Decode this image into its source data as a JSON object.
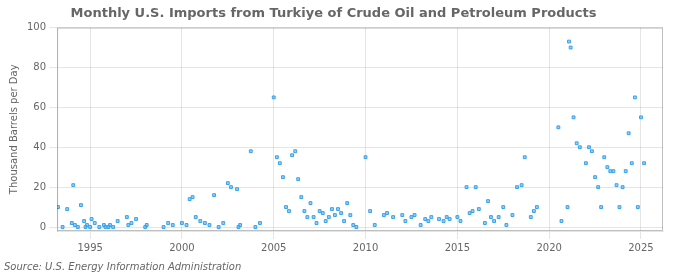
{
  "chart_data": {
    "type": "scatter",
    "title": "Monthly U.S. Imports from Turkiye of Crude Oil and Petroleum Products",
    "ylabel": "Thousand Barrels per Day",
    "annotations": [
      "Source: U.S. Energy Information Administration"
    ],
    "marker": "square",
    "grid": true,
    "xlim": [
      1993.2,
      2026.2
    ],
    "ylim": [
      -2,
      100
    ],
    "xticks": [
      1995,
      2000,
      2005,
      2010,
      2015,
      2020,
      2025
    ],
    "yticks": [
      0,
      20,
      40,
      60,
      80,
      100
    ],
    "x": [
      1993.25,
      1993.5,
      1993.75,
      1994.0,
      1994.08,
      1994.17,
      1994.33,
      1994.5,
      1994.67,
      1994.75,
      1994.83,
      1995.0,
      1995.08,
      1995.25,
      1995.5,
      1995.75,
      1995.83,
      1996.0,
      1996.08,
      1996.25,
      1996.5,
      1997.0,
      1997.08,
      1997.25,
      1997.5,
      1998.0,
      1998.08,
      1999.0,
      1999.25,
      1999.5,
      2000.0,
      2000.25,
      2000.42,
      2000.58,
      2000.75,
      2001.0,
      2001.25,
      2001.5,
      2001.75,
      2002.0,
      2002.25,
      2002.5,
      2002.67,
      2003.0,
      2003.08,
      2003.17,
      2003.75,
      2004.0,
      2004.25,
      2005.0,
      2005.17,
      2005.33,
      2005.5,
      2005.67,
      2005.83,
      2006.0,
      2006.17,
      2006.33,
      2006.5,
      2006.67,
      2006.83,
      2007.0,
      2007.17,
      2007.33,
      2007.5,
      2007.67,
      2007.83,
      2008.0,
      2008.17,
      2008.33,
      2008.5,
      2008.67,
      2008.83,
      2009.0,
      2009.17,
      2009.33,
      2009.5,
      2010.0,
      2010.25,
      2010.5,
      2011.0,
      2011.17,
      2011.5,
      2012.0,
      2012.17,
      2012.5,
      2012.67,
      2013.0,
      2013.25,
      2013.42,
      2013.58,
      2014.0,
      2014.25,
      2014.42,
      2014.58,
      2015.0,
      2015.17,
      2015.5,
      2015.67,
      2015.83,
      2016.0,
      2016.17,
      2016.5,
      2016.67,
      2016.83,
      2017.0,
      2017.25,
      2017.5,
      2017.67,
      2018.0,
      2018.25,
      2018.5,
      2018.67,
      2019.0,
      2019.17,
      2019.33,
      2020.5,
      2020.67,
      2021.0,
      2021.08,
      2021.17,
      2021.33,
      2021.5,
      2021.67,
      2022.0,
      2022.17,
      2022.33,
      2022.5,
      2022.67,
      2022.83,
      2023.0,
      2023.17,
      2023.33,
      2023.5,
      2023.67,
      2023.83,
      2024.0,
      2024.17,
      2024.33,
      2024.5,
      2024.67,
      2024.83,
      2025.0,
      2025.17
    ],
    "values": [
      10,
      0,
      9,
      2,
      21,
      1,
      0,
      11,
      3,
      0,
      1,
      0,
      4,
      2,
      0,
      1,
      0,
      0,
      1,
      0,
      3,
      5,
      1,
      2,
      4,
      0,
      1,
      0,
      2,
      1,
      2,
      1,
      14,
      15,
      5,
      3,
      2,
      1,
      16,
      0,
      2,
      22,
      20,
      19,
      0,
      1,
      38,
      0,
      2,
      65,
      35,
      32,
      25,
      10,
      8,
      36,
      38,
      24,
      15,
      8,
      5,
      12,
      5,
      2,
      8,
      7,
      3,
      5,
      9,
      6,
      9,
      7,
      3,
      12,
      6,
      1,
      0,
      35,
      8,
      1,
      6,
      7,
      5,
      6,
      3,
      5,
      6,
      1,
      4,
      3,
      5,
      4,
      3,
      5,
      4,
      5,
      3,
      20,
      7,
      8,
      20,
      9,
      2,
      13,
      5,
      3,
      5,
      10,
      1,
      6,
      20,
      21,
      35,
      5,
      8,
      10,
      50,
      3,
      10,
      93,
      90,
      55,
      42,
      40,
      32,
      40,
      38,
      25,
      20,
      10,
      35,
      30,
      28,
      28,
      21,
      10,
      20,
      28,
      47,
      32,
      65,
      10,
      55,
      32
    ]
  }
}
